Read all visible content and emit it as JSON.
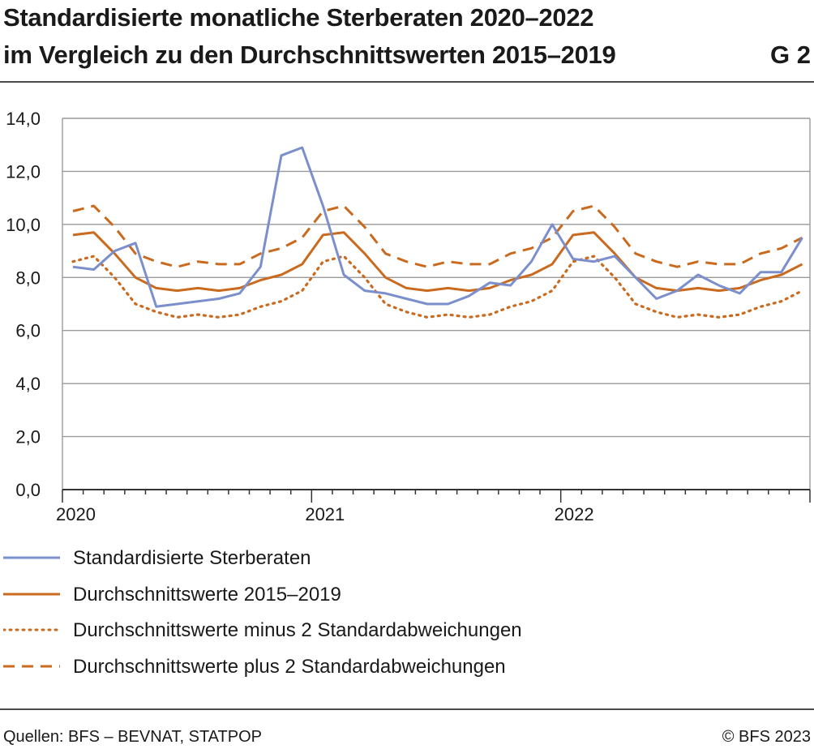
{
  "header": {
    "title_line1": "Standardisierte monatliche Sterberaten 2020–2022",
    "title_line2": "im Vergleich zu den Durchschnittswerten 2015–2019",
    "chart_id": "G 2"
  },
  "footer": {
    "source": "Quellen: BFS – BEVNAT, STATPOP",
    "copyright": "© BFS 2023"
  },
  "colors": {
    "observed": "#7b8fcc",
    "average": "#c96a1e",
    "grid": "#9a9a9a",
    "axis": "#333333"
  },
  "chart_data": {
    "type": "line",
    "title": "Standardisierte monatliche Sterberaten 2020–2022 im Vergleich zu den Durchschnittswerten 2015–2019",
    "xlabel": "",
    "ylabel": "",
    "ylim": [
      0,
      14
    ],
    "yticks": [
      "0,0",
      "2,0",
      "4,0",
      "6,0",
      "8,0",
      "10,0",
      "12,0",
      "14,0"
    ],
    "ytick_values": [
      0,
      2,
      4,
      6,
      8,
      10,
      12,
      14
    ],
    "xtick_labels": [
      "2020",
      "2021",
      "2022"
    ],
    "xtick_months": [
      0,
      12,
      24
    ],
    "months": 36,
    "grid": true,
    "legend_position": "bottom",
    "series": [
      {
        "name": "Standardisierte Sterberaten",
        "style": "solid",
        "color": "#7b8fcc",
        "values": [
          8.4,
          8.3,
          9.0,
          9.3,
          6.9,
          7.0,
          7.1,
          7.2,
          7.4,
          8.4,
          12.6,
          12.9,
          10.7,
          8.1,
          7.5,
          7.4,
          7.2,
          7.0,
          7.0,
          7.3,
          7.8,
          7.7,
          8.6,
          10.0,
          8.7,
          8.6,
          8.8,
          8.0,
          7.2,
          7.5,
          8.1,
          7.7,
          7.4,
          8.2,
          8.2,
          9.5
        ]
      },
      {
        "name": "Durchschnittswerte 2015–2019",
        "style": "solid",
        "color": "#c96a1e",
        "values": [
          9.6,
          9.7,
          8.9,
          8.0,
          7.6,
          7.5,
          7.6,
          7.5,
          7.6,
          7.9,
          8.1,
          8.5,
          9.6,
          9.7,
          8.9,
          8.0,
          7.6,
          7.5,
          7.6,
          7.5,
          7.6,
          7.9,
          8.1,
          8.5,
          9.6,
          9.7,
          8.9,
          8.0,
          7.6,
          7.5,
          7.6,
          7.5,
          7.6,
          7.9,
          8.1,
          8.5
        ]
      },
      {
        "name": "Durchschnittswerte minus 2 Standardabweichungen",
        "style": "dotted",
        "color": "#c96a1e",
        "values": [
          8.6,
          8.8,
          8.0,
          7.0,
          6.7,
          6.5,
          6.6,
          6.5,
          6.6,
          6.9,
          7.1,
          7.5,
          8.6,
          8.8,
          8.0,
          7.0,
          6.7,
          6.5,
          6.6,
          6.5,
          6.6,
          6.9,
          7.1,
          7.5,
          8.6,
          8.8,
          8.0,
          7.0,
          6.7,
          6.5,
          6.6,
          6.5,
          6.6,
          6.9,
          7.1,
          7.5
        ]
      },
      {
        "name": "Durchschnittswerte plus 2 Standardabweichungen",
        "style": "dashed",
        "color": "#c96a1e",
        "values": [
          10.5,
          10.7,
          9.9,
          8.9,
          8.6,
          8.4,
          8.6,
          8.5,
          8.5,
          8.9,
          9.1,
          9.5,
          10.5,
          10.7,
          9.9,
          8.9,
          8.6,
          8.4,
          8.6,
          8.5,
          8.5,
          8.9,
          9.1,
          9.5,
          10.5,
          10.7,
          9.9,
          8.9,
          8.6,
          8.4,
          8.6,
          8.5,
          8.5,
          8.9,
          9.1,
          9.5
        ]
      }
    ]
  }
}
